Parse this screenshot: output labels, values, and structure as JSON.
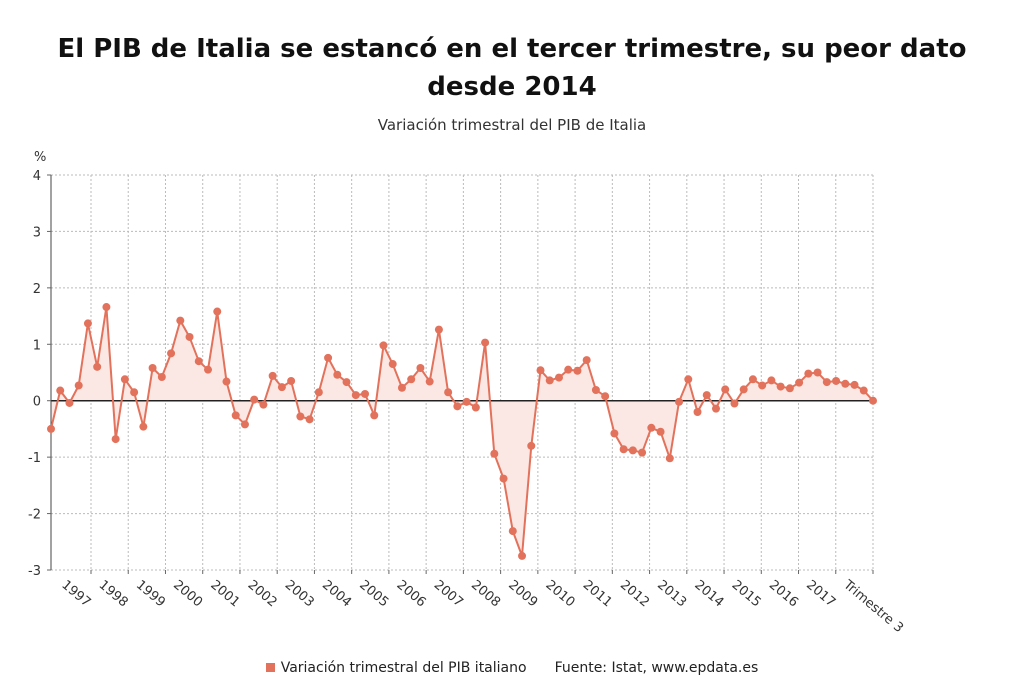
{
  "title": "El PIB de Italia se estancó en el tercer trimestre, su peor dato desde 2014",
  "subtitle": "Variación trimestral del PIB de Italia",
  "legend": {
    "series_label": "Variación trimestral del PIB italiano",
    "source": "Fuente: Istat, www.epdata.es"
  },
  "colors": {
    "series": "#e2725b",
    "fill": "#fbe8e4",
    "zero_line": "#222222",
    "grid": "#bbbbbb"
  },
  "chart_data": {
    "type": "line",
    "title": "Variación trimestral del PIB de Italia",
    "ylabel": "%",
    "ylim": [
      -3,
      4
    ],
    "yticks": [
      4,
      3,
      2,
      1,
      0,
      -1,
      -2,
      -3
    ],
    "grid": true,
    "legend_position": "bottom",
    "x_ticks": [
      "1997",
      "1998",
      "1999",
      "2000",
      "2001",
      "2002",
      "2003",
      "2004",
      "2005",
      "2006",
      "2007",
      "2008",
      "2009",
      "2010",
      "2011",
      "2012",
      "2013",
      "2014",
      "2015",
      "2016",
      "2017",
      "Trimestre 3"
    ],
    "series": [
      {
        "name": "Variación trimestral del PIB italiano",
        "values": [
          -0.5,
          0.18,
          -0.04,
          0.27,
          1.37,
          0.6,
          1.66,
          -0.68,
          0.38,
          0.15,
          -0.46,
          0.58,
          0.42,
          0.84,
          1.42,
          1.13,
          0.7,
          0.55,
          1.58,
          0.34,
          -0.26,
          -0.42,
          0.02,
          -0.07,
          0.44,
          0.24,
          0.35,
          -0.28,
          -0.33,
          0.15,
          0.76,
          0.46,
          0.33,
          0.1,
          0.12,
          -0.26,
          0.98,
          0.65,
          0.23,
          0.38,
          0.58,
          0.34,
          1.26,
          0.15,
          -0.1,
          -0.02,
          -0.12,
          1.03,
          -0.94,
          -1.38,
          -2.31,
          -2.75,
          -0.8,
          0.54,
          0.36,
          0.41,
          0.55,
          0.53,
          0.72,
          0.19,
          0.08,
          -0.58,
          -0.86,
          -0.88,
          -0.92,
          -0.48,
          -0.55,
          -1.02,
          -0.02,
          0.38,
          -0.2,
          0.1,
          -0.14,
          0.2,
          -0.05,
          0.2,
          0.38,
          0.27,
          0.36,
          0.25,
          0.22,
          0.32,
          0.48,
          0.5,
          0.33,
          0.35,
          0.3,
          0.28,
          0.18,
          0.0
        ]
      }
    ]
  }
}
